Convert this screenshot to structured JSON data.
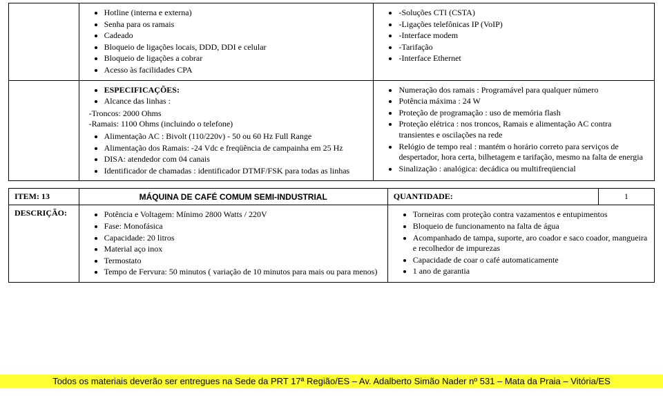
{
  "block1": {
    "left": [
      "Hotline (interna e externa)",
      "Senha para os ramais",
      "Cadeado",
      "Bloqueio de ligações locais, DDD, DDI e celular",
      "Bloqueio de ligações a cobrar",
      "Acesso às facilidades CPA"
    ],
    "right": [
      "-Soluções CTI (CSTA)",
      "-Ligações telefônicas IP (VoIP)",
      "-Interface modem",
      "-Tarifação",
      "-Interface Ethernet"
    ]
  },
  "block2": {
    "left_bul1": [
      "ESPECIFICAÇÕES:",
      "Alcance das linhas :"
    ],
    "left_plain": [
      "-Troncos: 2000 Ohms",
      "-Ramais: 1100 Ohms (incluindo o telefone)"
    ],
    "left_bul2": [
      "Alimentação AC : Bivolt (110/220v) - 50 ou 60 Hz Full Range",
      "Alimentação dos Ramais: -24 Vdc e freqüência de campainha em 25 Hz",
      "DISA: atendedor com 04 canais",
      "Identificador de chamadas : identificador DTMF/FSK para todas as linhas"
    ],
    "right": [
      "Numeração dos ramais : Programável para qualquer número",
      "Potência máxima : 24 W",
      "Proteção de programação : uso de memória flash",
      "Proteção elétrica : nos troncos, Ramais e alimentação AC contra transientes e oscilações na rede",
      "Relógio de tempo real : mantém o horário correto para serviços de despertador, hora certa, bilhetagem e tarifação, mesmo na falta de energia",
      "Sinalização : analógica: decádica ou multifreqüencial"
    ]
  },
  "item": {
    "label": "ITEM: 13",
    "title": "MÁQUINA DE CAFÉ COMUM SEMI-INDUSTRIAL",
    "qty_label": "QUANTIDADE:",
    "qty_value": "1",
    "desc_label": "DESCRIÇÃO:"
  },
  "block3": {
    "left": [
      "Potência e Voltagem: Mínimo 2800 Watts / 220V",
      "Fase: Monofásica",
      "Capacidade: 20 litros",
      "Material aço inox",
      "Termostato",
      "Tempo de Fervura: 50 minutos ( variação de 10 minutos para mais ou para menos)"
    ],
    "right": [
      "Torneiras com proteção contra vazamentos e entupimentos",
      "Bloqueio de funcionamento na falta de água",
      "Acompanhado de tampa, suporte, aro coador e saco coador, mangueira e recolhedor de impurezas",
      "Capacidade de coar o café automaticamente",
      "1 ano de garantia"
    ]
  },
  "footer": "Todos os materiais deverão ser entregues na Sede da PRT 17ª Região/ES – Av. Adalberto Simão Nader nº 531 – Mata da Praia – Vitória/ES"
}
